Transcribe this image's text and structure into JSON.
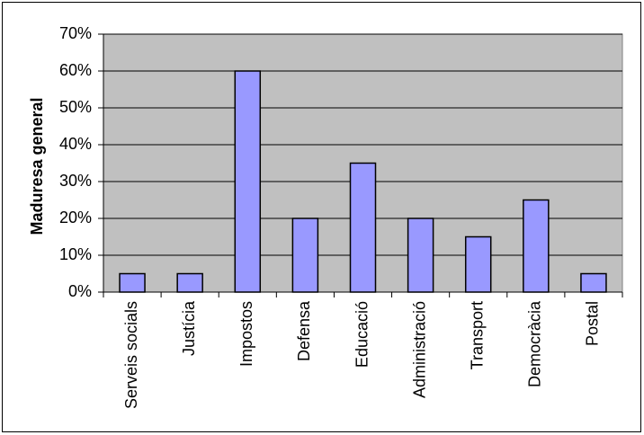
{
  "chart_data": {
    "type": "bar",
    "y_label": "Maduresa general",
    "categories": [
      "Serveis socials",
      "Justícia",
      "Impostos",
      "Defensa",
      "Educació",
      "Administració",
      "Transport",
      "Democràcia",
      "Postal"
    ],
    "values": [
      5,
      5,
      60,
      20,
      35,
      20,
      15,
      25,
      5
    ],
    "color": "#9999ff",
    "ylim": [
      0,
      70
    ],
    "yticks": [
      {
        "value": 0,
        "label": "0%"
      },
      {
        "value": 10,
        "label": "10%"
      },
      {
        "value": 20,
        "label": "20%"
      },
      {
        "value": 30,
        "label": "30%"
      },
      {
        "value": 40,
        "label": "40%"
      },
      {
        "value": 50,
        "label": "50%"
      },
      {
        "value": 60,
        "label": "60%"
      },
      {
        "value": 70,
        "label": "70%"
      }
    ],
    "grid": true
  }
}
